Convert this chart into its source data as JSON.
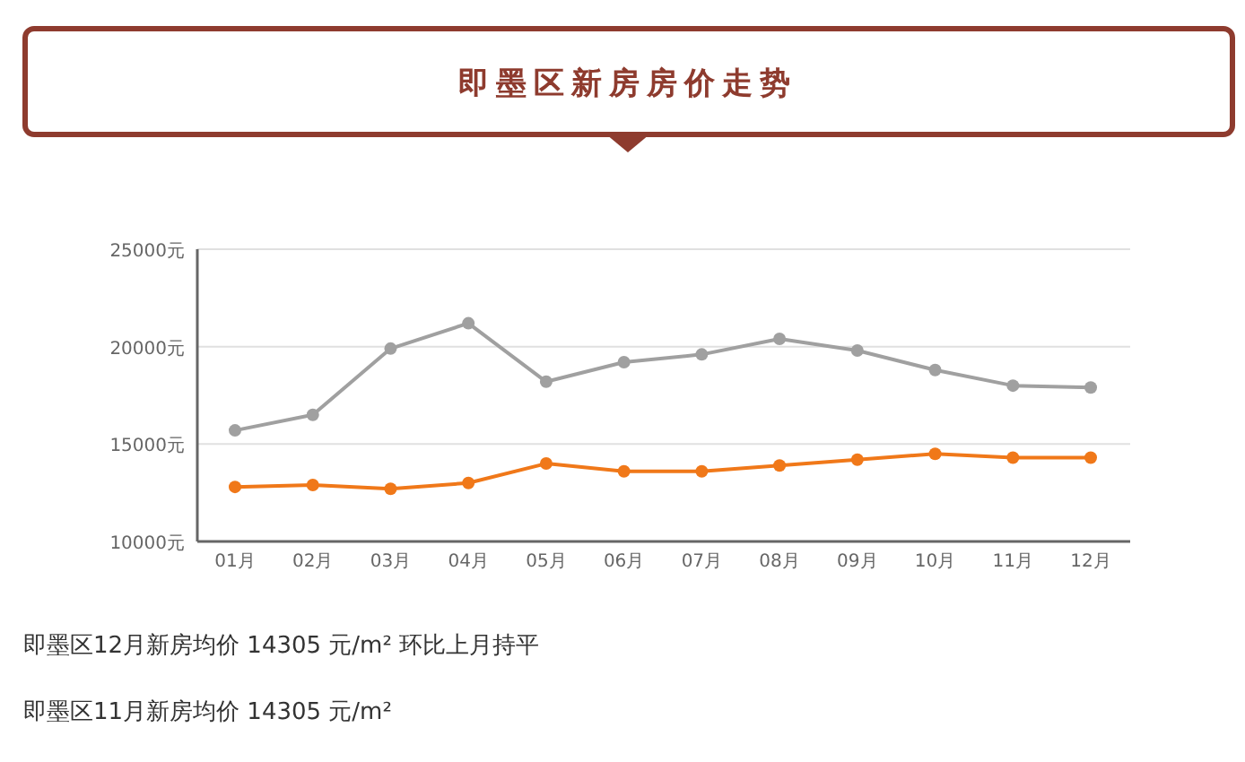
{
  "chart_data": {
    "type": "line",
    "title": "即墨区新房房价走势",
    "categories": [
      "01月",
      "02月",
      "03月",
      "04月",
      "05月",
      "06月",
      "07月",
      "08月",
      "09月",
      "10月",
      "11月",
      "12月"
    ],
    "series": [
      {
        "color": "#a0a0a0",
        "values": [
          15700,
          16500,
          19900,
          21200,
          18200,
          19200,
          19600,
          20400,
          19800,
          18800,
          18000,
          17900
        ]
      },
      {
        "color": "#f07819",
        "values": [
          12800,
          12900,
          12700,
          13000,
          14000,
          13600,
          13600,
          13900,
          14200,
          14500,
          14300,
          14300
        ]
      }
    ],
    "ylim": [
      10000,
      25000
    ],
    "yticks": [
      {
        "value": 10000,
        "label": "10000元"
      },
      {
        "value": 15000,
        "label": "15000元"
      },
      {
        "value": 20000,
        "label": "20000元"
      },
      {
        "value": 25000,
        "label": "25000元"
      }
    ],
    "grid": "y",
    "marker": "circle",
    "line_style": "solid",
    "annotations": [
      "即墨区12月新房均价 14305 元/m² 环比上月持平",
      "即墨区11月新房均价 14305 元/m²"
    ]
  }
}
